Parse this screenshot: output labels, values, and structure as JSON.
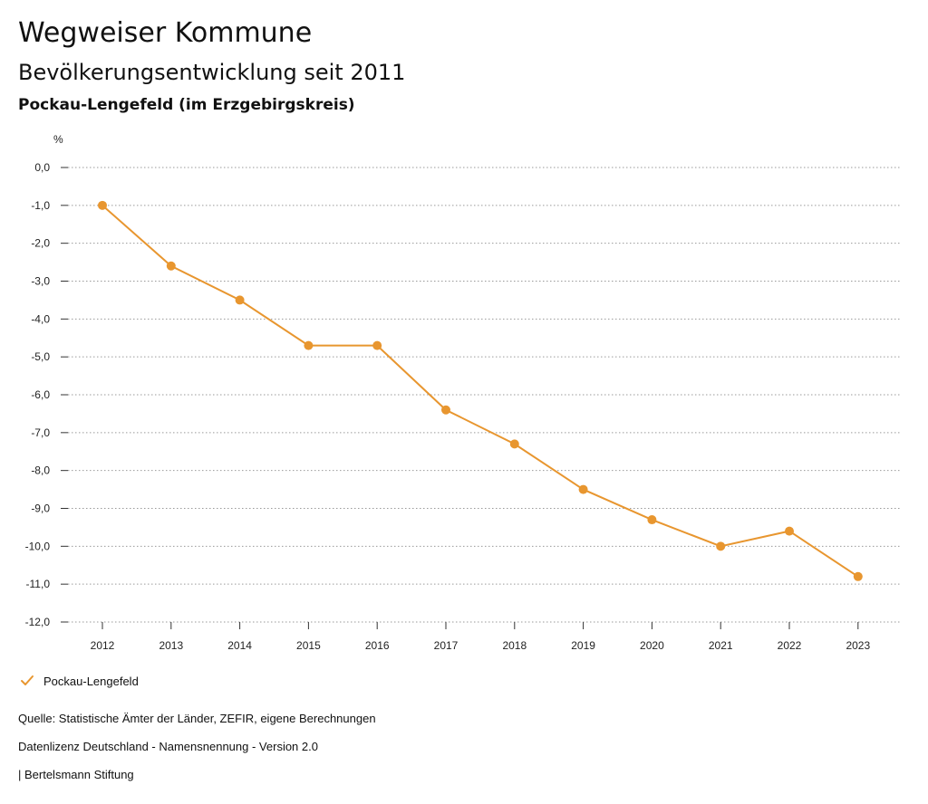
{
  "header": {
    "title": "Wegweiser Kommune",
    "subtitle": "Bevölkerungsentwicklung seit 2011",
    "region": "Pockau-Lengefeld (im Erzgebirgskreis)"
  },
  "chart_data": {
    "type": "line",
    "unit_label": "%",
    "x": [
      "2012",
      "2013",
      "2014",
      "2015",
      "2016",
      "2017",
      "2018",
      "2019",
      "2020",
      "2021",
      "2022",
      "2023"
    ],
    "series": [
      {
        "name": "Pockau-Lengefeld",
        "color": "#e8962f",
        "values": [
          -1.0,
          -2.6,
          -3.5,
          -4.7,
          -4.7,
          -6.4,
          -7.3,
          -8.5,
          -9.3,
          -10.0,
          -9.6,
          -10.8
        ]
      }
    ],
    "ylim": [
      -12,
      0
    ],
    "yticks": [
      0,
      -1,
      -2,
      -3,
      -4,
      -5,
      -6,
      -7,
      -8,
      -9,
      -10,
      -11,
      -12
    ],
    "ytick_labels": [
      "0,0",
      "-1,0",
      "-2,0",
      "-3,0",
      "-4,0",
      "-5,0",
      "-6,0",
      "-7,0",
      "-8,0",
      "-9,0",
      "-10,0",
      "-11,0",
      "-12,0"
    ],
    "grid": true,
    "legend_position": "bottom-left"
  },
  "legend": {
    "label": "Pockau-Lengefeld",
    "icon": "check-icon"
  },
  "footer": {
    "source": "Quelle: Statistische Ämter der Länder, ZEFIR, eigene Berechnungen",
    "license": "Datenlizenz Deutschland - Namensnennung - Version 2.0",
    "publisher": "| Bertelsmann Stiftung"
  }
}
